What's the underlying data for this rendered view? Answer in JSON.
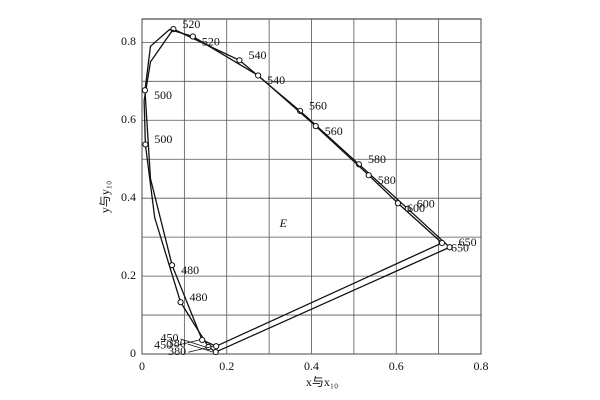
{
  "chart_data": {
    "type": "line",
    "xlabel": "x与x₁₀",
    "ylabel": "y与y₁₀",
    "xlim": [
      0,
      0.8
    ],
    "ylim": [
      0,
      0.86
    ],
    "xticks": [
      0,
      0.2,
      0.4,
      0.6,
      0.8
    ],
    "yticks": [
      0,
      0.2,
      0.4,
      0.6,
      0.8
    ],
    "minor_xticks": [
      0.1,
      0.3,
      0.5,
      0.7
    ],
    "minor_yticks": [
      0.1,
      0.3,
      0.5,
      0.7
    ],
    "grid": true,
    "closed": true,
    "color": "#111",
    "annotations": [
      {
        "text": "E",
        "x": 0.3333,
        "y": 0.3333
      }
    ],
    "series": [
      {
        "labels": [
          "380",
          "450",
          "480",
          null,
          "500",
          null,
          null,
          "520",
          "540",
          "560",
          "580",
          "600",
          "650"
        ],
        "x": [
          0.174,
          0.157,
          0.091,
          0.03,
          0.008,
          0.005,
          0.02,
          0.074,
          0.23,
          0.373,
          0.512,
          0.627,
          0.726
        ],
        "values": [
          0.005,
          0.018,
          0.133,
          0.35,
          0.538,
          0.65,
          0.75,
          0.834,
          0.754,
          0.624,
          0.487,
          0.373,
          0.274
        ]
      },
      {
        "labels": [
          "380",
          "450",
          "480",
          null,
          "500",
          null,
          null,
          "520",
          "540",
          "560",
          "580",
          "600",
          "650"
        ],
        "x": [
          0.175,
          0.142,
          0.071,
          0.02,
          0.007,
          0.02,
          0.065,
          0.12,
          0.274,
          0.41,
          0.535,
          0.604,
          0.708
        ],
        "values": [
          0.02,
          0.036,
          0.228,
          0.45,
          0.677,
          0.79,
          0.833,
          0.815,
          0.715,
          0.585,
          0.459,
          0.387,
          0.285
        ]
      }
    ]
  }
}
